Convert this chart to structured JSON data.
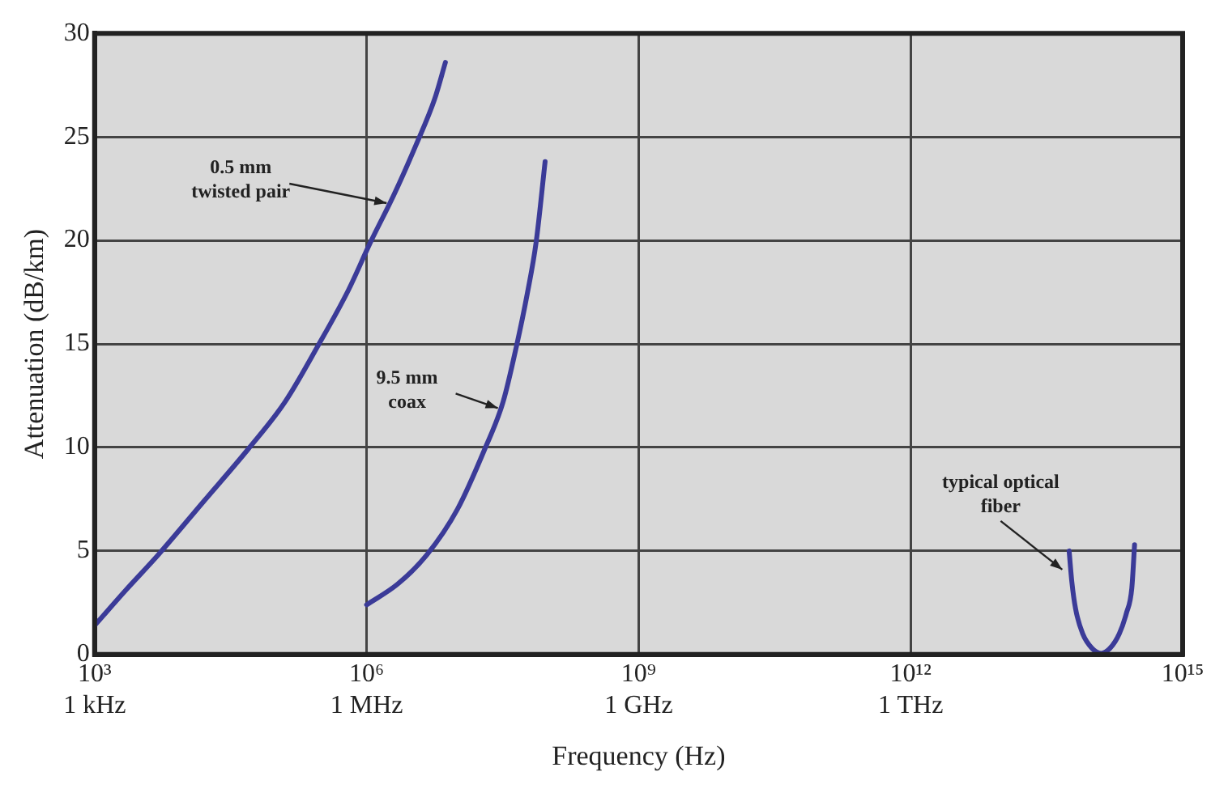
{
  "chart_data": {
    "type": "line",
    "xlabel": "Frequency (Hz)",
    "ylabel": "Attenuation (dB/km)",
    "log": "x",
    "xlim": [
      1000.0,
      1000000000000000.0
    ],
    "xticks": [
      {
        "value": 1000.0,
        "label": "10³"
      },
      {
        "value": 1000000.0,
        "label": "10⁶"
      },
      {
        "value": 1000000000.0,
        "label": "10⁹"
      },
      {
        "value": 1000000000000.0,
        "label": "10¹²"
      },
      {
        "value": 1000000000000000.0,
        "label": "10¹⁵"
      }
    ],
    "ylim": [
      0,
      30
    ],
    "yticks": [
      0,
      5,
      10,
      15,
      20,
      25,
      30
    ],
    "grid": true,
    "legend": false,
    "marker": "none",
    "line_style": "solid",
    "series": [
      {
        "color": "#3b3b98",
        "x": [
          1000.0,
          2200.0,
          5000.0,
          16000.0,
          49000.0,
          126000.0,
          290000.0,
          630000.0,
          1100000.0,
          2000000.0,
          3500000.0,
          5600000.0,
          7400000.0
        ],
        "values": [
          1.4,
          3.1,
          4.8,
          7.4,
          9.9,
          12.2,
          14.9,
          17.6,
          19.9,
          22.2,
          24.6,
          26.8,
          28.6
        ]
      },
      {
        "color": "#3b3b98",
        "x": [
          1000000.0,
          2200000.0,
          4600000.0,
          10000000.0,
          20000000.0,
          32000000.0,
          45000000.0,
          59000000.0,
          74000000.0,
          93000000.0
        ],
        "values": [
          2.4,
          3.4,
          4.8,
          7.0,
          9.9,
          12.2,
          14.9,
          17.4,
          19.9,
          23.8
        ]
      },
      {
        "color": "#3b3b98",
        "x": [
          56000000000000.0,
          60000000000000.0,
          66000000000000.0,
          79000000000000.0,
          100000000000000.0,
          126000000000000.0,
          158000000000000.0,
          200000000000000.0,
          240000000000000.0,
          275000000000000.0,
          295000000000000.0
        ],
        "values": [
          5.0,
          3.5,
          2.2,
          1.0,
          0.3,
          0.05,
          0.3,
          1.0,
          2.0,
          3.2,
          5.3
        ]
      }
    ],
    "annotations": [
      {
        "text": "0.5 mm\ntwisted pair",
        "x": 1660000.0,
        "y": 21.8
      },
      {
        "text": "9.5 mm\ncoax",
        "x": 28000000.0,
        "y": 11.9
      },
      {
        "text": "typical optical\nfiber",
        "x": 47000000000000.0,
        "y": 4.1
      },
      "1 kHz",
      "1 MHz",
      "1 GHz",
      "1 THz"
    ]
  }
}
